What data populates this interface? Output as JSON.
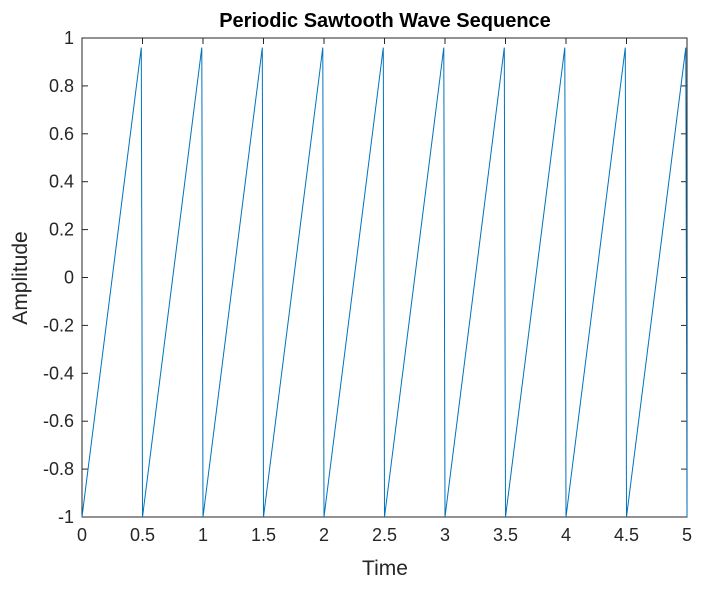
{
  "chart_data": {
    "type": "line",
    "title": "Periodic Sawtooth Wave Sequence",
    "xlabel": "Time",
    "ylabel": "Amplitude",
    "xlim": [
      0,
      5
    ],
    "ylim": [
      -1,
      1
    ],
    "xticks": [
      0,
      0.5,
      1,
      1.5,
      2,
      2.5,
      3,
      3.5,
      4,
      4.5,
      5
    ],
    "xtick_labels": [
      "0",
      "0.5",
      "1",
      "1.5",
      "2",
      "2.5",
      "3",
      "3.5",
      "4",
      "4.5",
      "5"
    ],
    "yticks": [
      -1,
      -0.8,
      -0.6,
      -0.4,
      -0.2,
      0,
      0.2,
      0.4,
      0.6,
      0.8,
      1
    ],
    "ytick_labels": [
      "-1",
      "-0.8",
      "-0.6",
      "-0.4",
      "-0.2",
      "0",
      "0.2",
      "0.4",
      "0.6",
      "0.8",
      "1"
    ],
    "grid": false,
    "box": true,
    "series": [
      {
        "color": "#0072BD",
        "x": [
          0,
          0.49,
          0.5,
          0.99,
          1.0,
          1.49,
          1.5,
          1.99,
          2.0,
          2.49,
          2.5,
          2.99,
          3.0,
          3.49,
          3.5,
          3.99,
          4.0,
          4.49,
          4.5,
          4.99,
          5.0
        ],
        "y": [
          -1,
          0.96,
          -1,
          0.96,
          -1,
          0.96,
          -1,
          0.96,
          -1,
          0.96,
          -1,
          0.96,
          -1,
          0.96,
          -1,
          0.96,
          -1,
          0.96,
          -1,
          0.96,
          -1
        ]
      }
    ]
  }
}
